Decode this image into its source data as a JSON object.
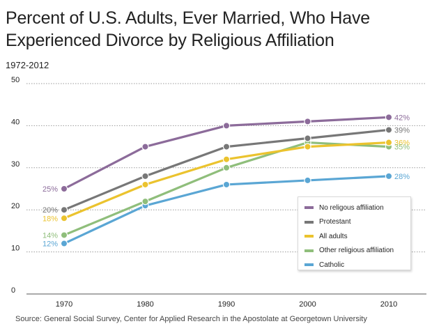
{
  "chart_data": {
    "type": "line",
    "title": "Percent of U.S. Adults, Ever Married, Who Have Experienced Divorce by Religious Affiliation",
    "subtitle": "1972-2012",
    "xlabel": "",
    "ylabel": "",
    "x": [
      1970,
      1980,
      1990,
      2000,
      2010
    ],
    "x_tick_labels": [
      "1970",
      "1980",
      "1990",
      "2000",
      "2010"
    ],
    "y_ticks": [
      0,
      10,
      20,
      30,
      40,
      50
    ],
    "y_tick_labels": [
      "0",
      "10",
      "20",
      "30",
      "40",
      "50"
    ],
    "ylim": [
      0,
      50
    ],
    "grid": "horizontal dotted",
    "legend_position": "bottom-right",
    "series": [
      {
        "name": "No religous affiliation",
        "color": "#8c6b9a",
        "values": [
          25,
          35,
          40,
          41,
          42
        ],
        "start_label": "25%",
        "end_label": "42%"
      },
      {
        "name": "Protestant",
        "color": "#777777",
        "values": [
          20,
          28,
          35,
          37,
          39
        ],
        "start_label": "20%",
        "end_label": "39%"
      },
      {
        "name": "All adults",
        "color": "#ebc32e",
        "values": [
          18,
          26,
          32,
          35,
          36
        ],
        "start_label": "18%",
        "end_label": "36%"
      },
      {
        "name": "Other religious affiliation",
        "color": "#8fbe7b",
        "values": [
          14,
          22,
          30,
          36,
          35
        ],
        "start_label": "14%",
        "end_label": "35%"
      },
      {
        "name": "Catholic",
        "color": "#5aa6d4",
        "values": [
          12,
          21,
          26,
          27,
          28
        ],
        "start_label": "12%",
        "end_label": "28%"
      }
    ]
  },
  "source": "Source: General Social Survey, Center for Applied Research in the Apostolate at Georgetown University"
}
